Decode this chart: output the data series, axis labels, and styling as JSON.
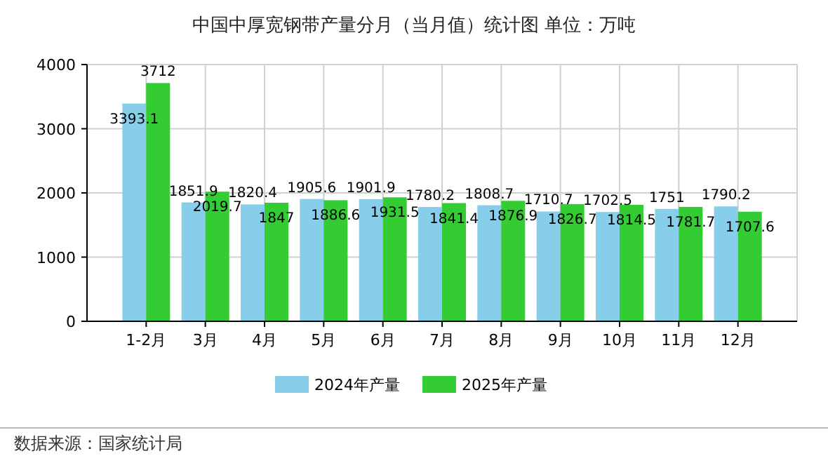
{
  "chart_data": {
    "type": "bar",
    "title": "中国中厚宽钢带产量分月（当月值）统计图 单位：万吨",
    "categories": [
      "1-2月",
      "3月",
      "4月",
      "5月",
      "6月",
      "7月",
      "8月",
      "9月",
      "10月",
      "11月",
      "12月"
    ],
    "series": [
      {
        "name": "2024年产量",
        "color": "#87ceeb",
        "values": [
          3393.1,
          1851.9,
          1820.4,
          1905.6,
          1901.9,
          1780.2,
          1808.7,
          1710.7,
          1702.5,
          1751,
          1790.2
        ]
      },
      {
        "name": "2025年产量",
        "color": "#33cc33",
        "values": [
          3712,
          2019.7,
          1847,
          1886.6,
          1931.5,
          1841.4,
          1876.9,
          1826.7,
          1814.5,
          1781.7,
          1707.6
        ]
      }
    ],
    "ylim": [
      0,
      4000
    ],
    "yticks": [
      0,
      1000,
      2000,
      3000,
      4000
    ],
    "grid": true,
    "legend": "bottom",
    "data_labels": true,
    "annotations": [
      "数据来源：国家统计局"
    ]
  }
}
